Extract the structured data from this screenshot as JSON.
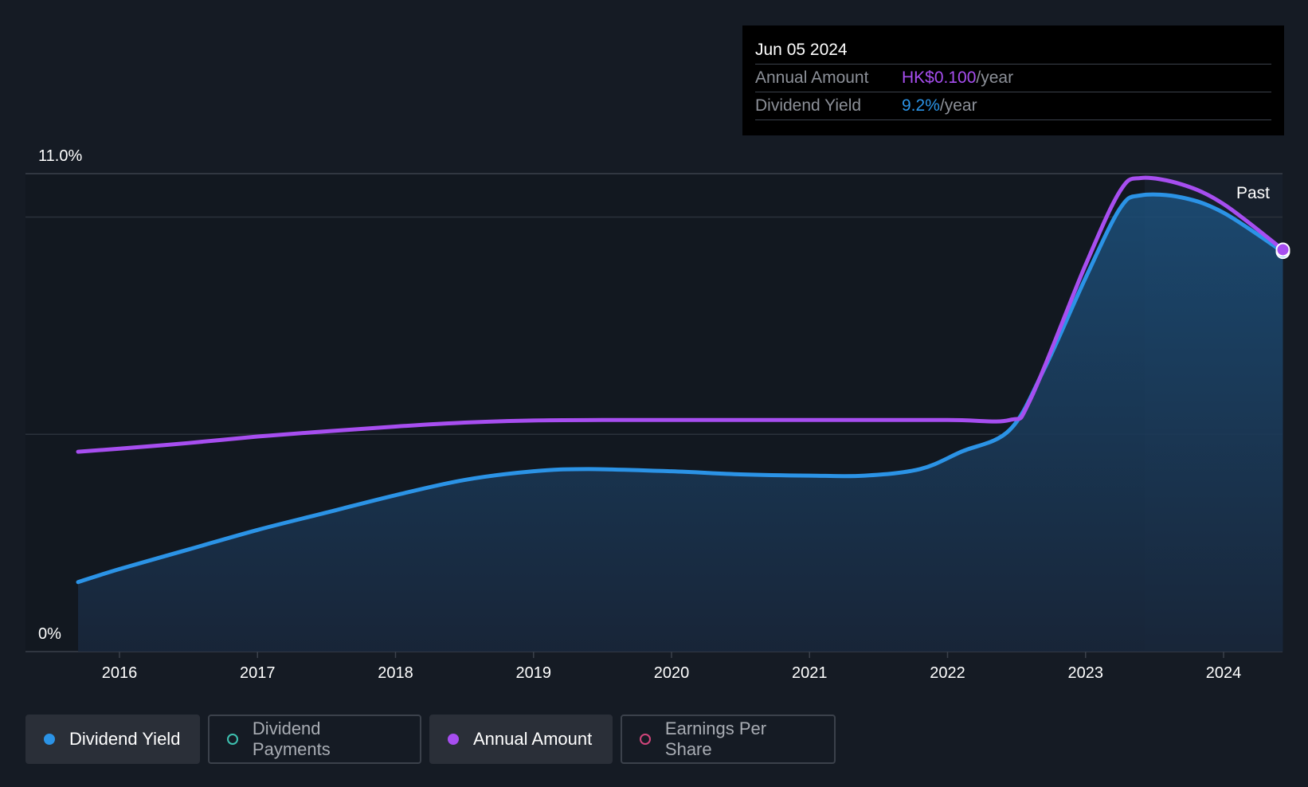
{
  "chart_data": {
    "type": "area",
    "y_axis": {
      "top_label": "11.0%",
      "bottom_label": "0%",
      "ylim": [
        0,
        11.0
      ]
    },
    "x_ticks": [
      "2016",
      "2017",
      "2018",
      "2019",
      "2020",
      "2021",
      "2022",
      "2023",
      "2024"
    ],
    "past_label": "Past",
    "series": [
      {
        "name": "Dividend Yield",
        "color": "#2b93e6",
        "fill": true,
        "points": [
          [
            2015.7,
            1.6
          ],
          [
            2016.0,
            1.9
          ],
          [
            2016.5,
            2.35
          ],
          [
            2017.0,
            2.8
          ],
          [
            2017.5,
            3.2
          ],
          [
            2018.0,
            3.6
          ],
          [
            2018.5,
            3.95
          ],
          [
            2019.0,
            4.15
          ],
          [
            2019.4,
            4.2
          ],
          [
            2020.0,
            4.15
          ],
          [
            2020.5,
            4.08
          ],
          [
            2021.0,
            4.05
          ],
          [
            2021.4,
            4.05
          ],
          [
            2021.8,
            4.2
          ],
          [
            2022.1,
            4.6
          ],
          [
            2022.45,
            5.1
          ],
          [
            2022.7,
            6.5
          ],
          [
            2023.0,
            8.6
          ],
          [
            2023.25,
            10.2
          ],
          [
            2023.4,
            10.5
          ],
          [
            2023.7,
            10.45
          ],
          [
            2024.0,
            10.1
          ],
          [
            2024.43,
            9.2
          ]
        ]
      },
      {
        "name": "Annual Amount",
        "color": "#a74ef0",
        "fill": false,
        "points": [
          [
            2015.7,
            4.6
          ],
          [
            2016.0,
            4.67
          ],
          [
            2016.5,
            4.8
          ],
          [
            2017.0,
            4.95
          ],
          [
            2017.5,
            5.07
          ],
          [
            2018.0,
            5.18
          ],
          [
            2018.5,
            5.27
          ],
          [
            2019.0,
            5.32
          ],
          [
            2019.5,
            5.33
          ],
          [
            2020.0,
            5.33
          ],
          [
            2021.0,
            5.33
          ],
          [
            2022.0,
            5.33
          ],
          [
            2022.45,
            5.33
          ],
          [
            2022.6,
            5.8
          ],
          [
            2023.0,
            8.9
          ],
          [
            2023.25,
            10.6
          ],
          [
            2023.4,
            10.9
          ],
          [
            2023.7,
            10.75
          ],
          [
            2024.0,
            10.3
          ],
          [
            2024.43,
            9.25
          ]
        ]
      }
    ]
  },
  "tooltip": {
    "date": "Jun 05 2024",
    "annual_label": "Annual Amount",
    "annual_value": "HK$0.100",
    "annual_unit": "/year",
    "yield_label": "Dividend Yield",
    "yield_value": "9.2%",
    "yield_unit": "/year"
  },
  "legend": [
    {
      "label": "Dividend Yield",
      "color": "#2b93e6",
      "state": "active",
      "marker": "filled"
    },
    {
      "label": "Dividend Payments",
      "color": "#3ec1b0",
      "state": "inactive",
      "marker": "hollow"
    },
    {
      "label": "Annual Amount",
      "color": "#a74ef0",
      "state": "active",
      "marker": "filled"
    },
    {
      "label": "Earnings Per Share",
      "color": "#d1457b",
      "state": "inactive",
      "marker": "hollow"
    }
  ]
}
